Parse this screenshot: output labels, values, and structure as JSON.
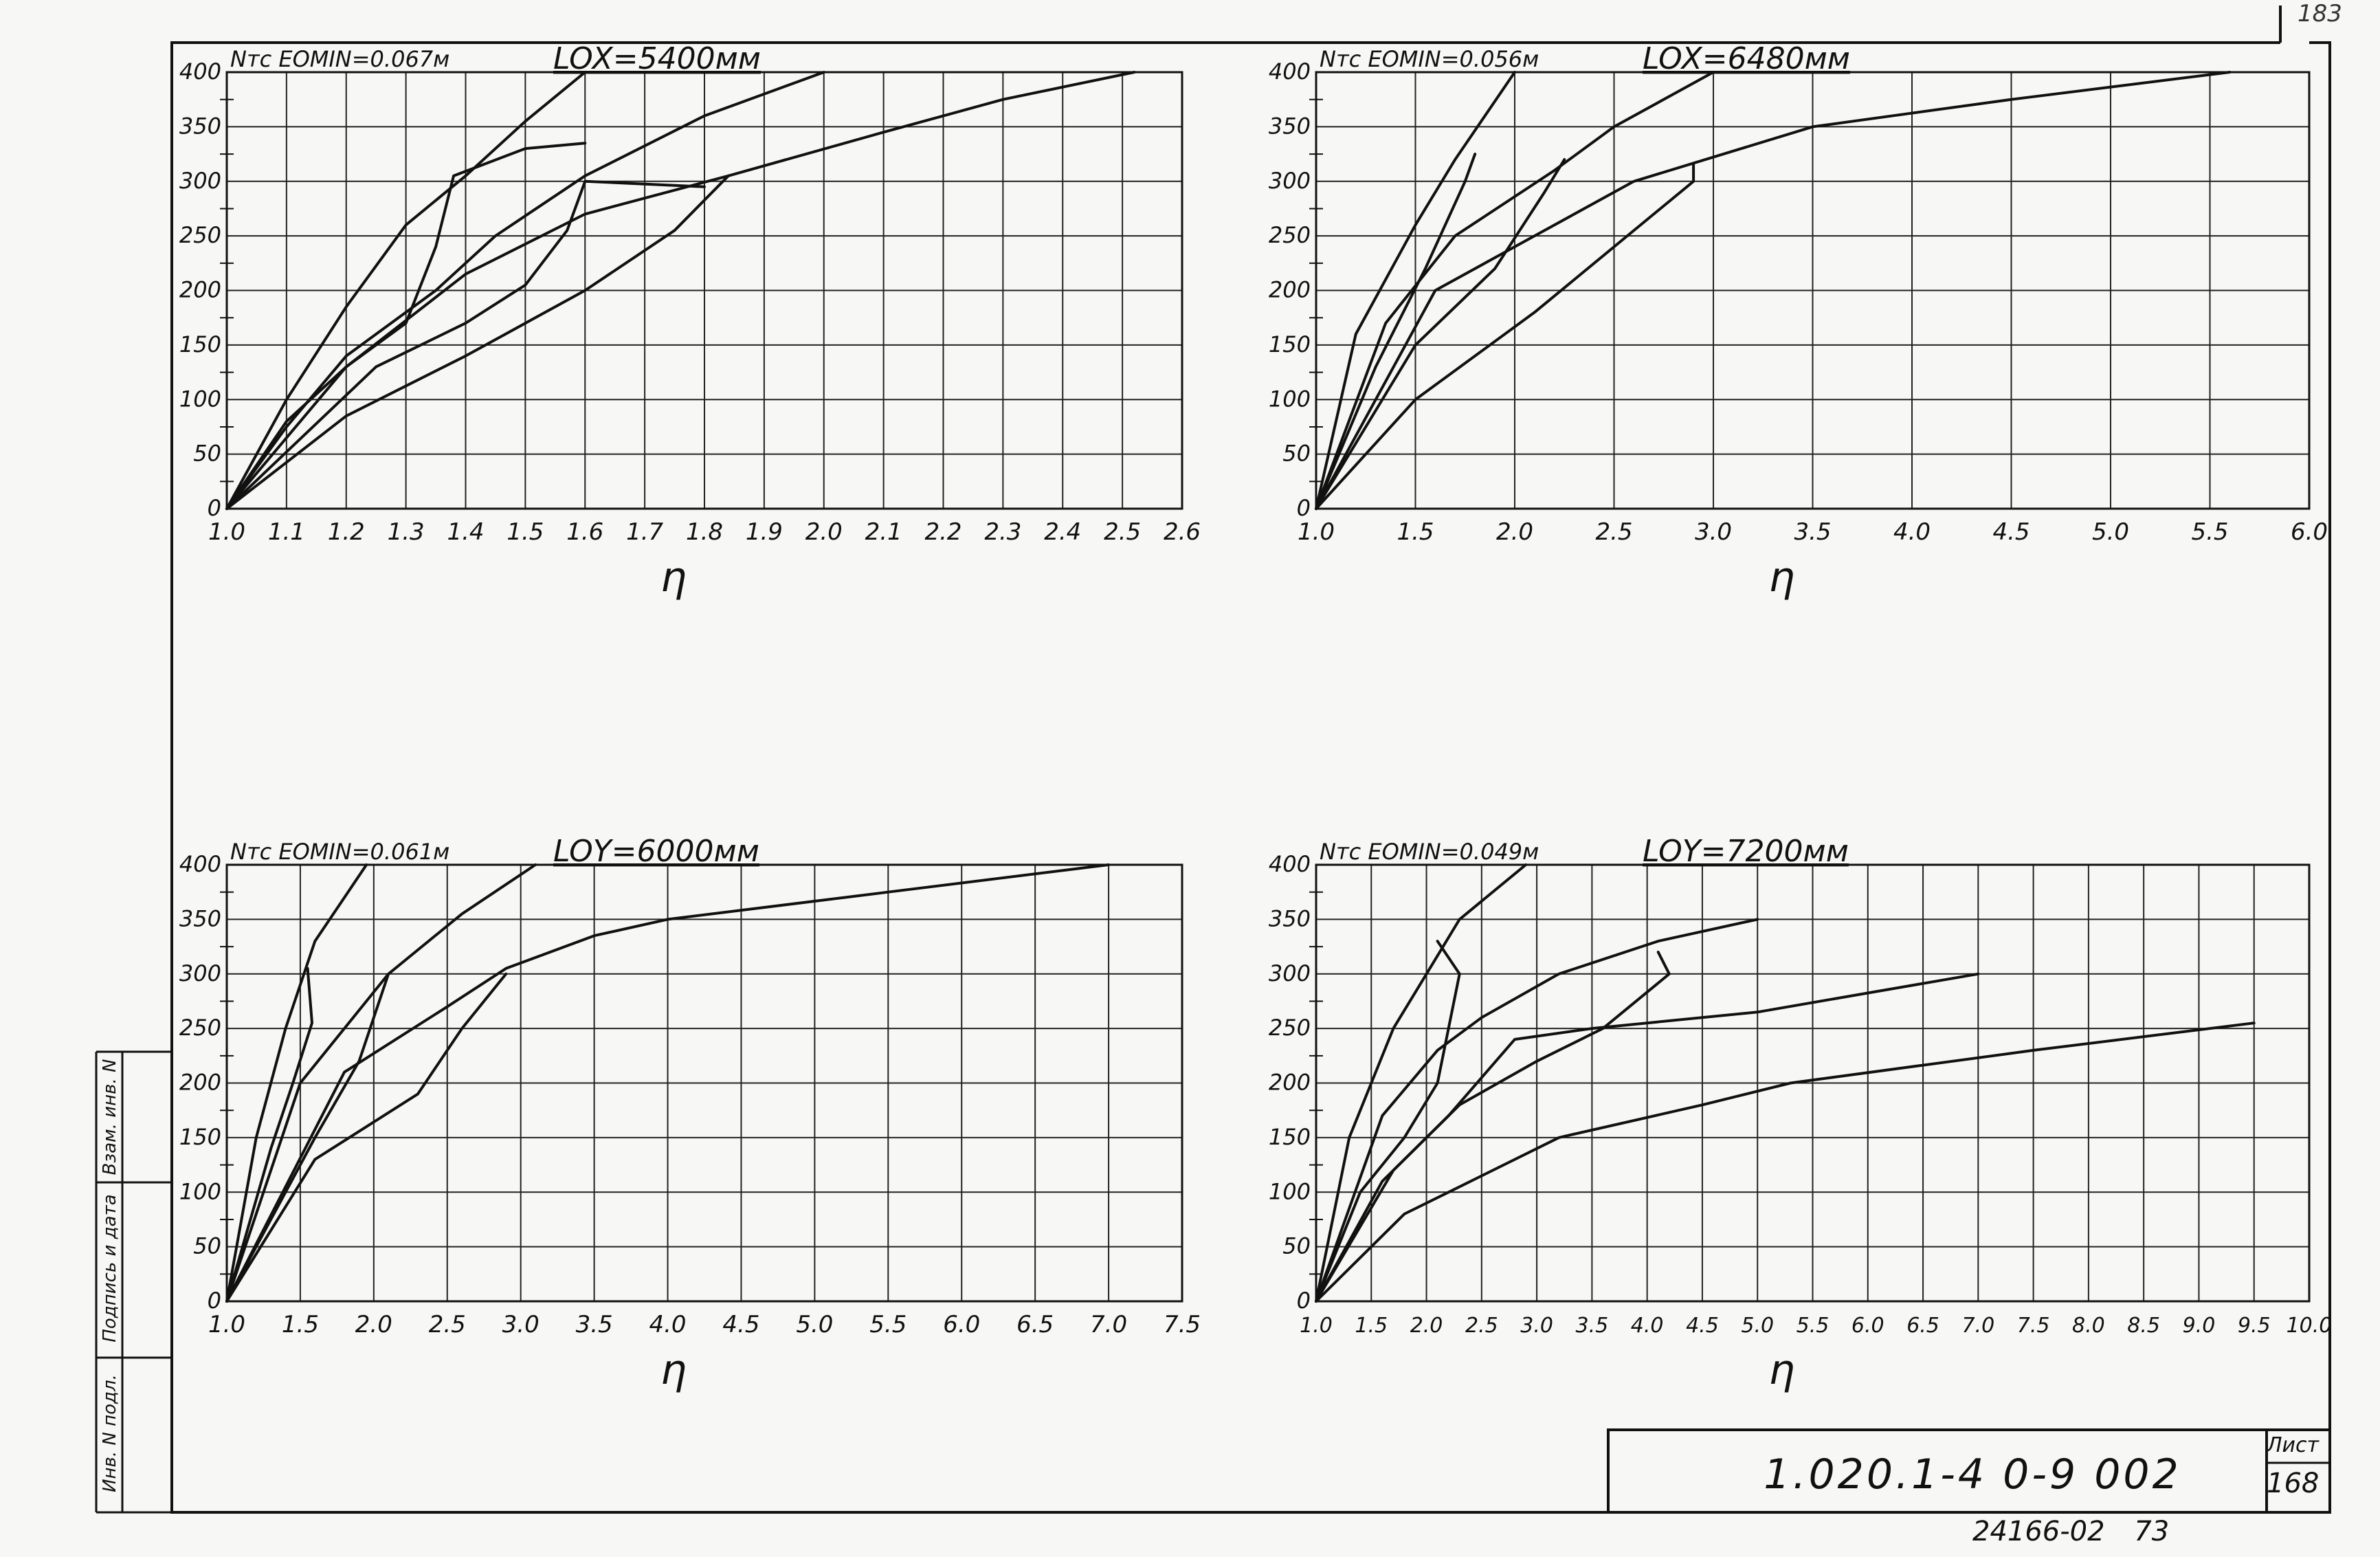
{
  "page": {
    "page_number": "183",
    "document_code": "1.020.1-4  0-9  002",
    "sheet_label": "Лист",
    "sheet_number": "168",
    "archive_number": "24166-02",
    "archive_page": "73",
    "stamp_columns": [
      "Инв. N подл.",
      "Подпись и дата",
      "Взам. инв. N"
    ]
  },
  "chart_data": [
    {
      "type": "line",
      "header_left": "Nтс  EOMIN=0.067м",
      "header_right": "LOX=5400мм",
      "xlabel": "η",
      "xlim": [
        1.0,
        2.6
      ],
      "ylim": [
        0,
        400
      ],
      "xticks": [
        1.0,
        1.1,
        1.2,
        1.3,
        1.4,
        1.5,
        1.6,
        1.7,
        1.8,
        1.9,
        2.0,
        2.1,
        2.2,
        2.3,
        2.4,
        2.5,
        2.6
      ],
      "xtick_labels": [
        "1.0",
        "1.1",
        "1.2",
        "1.3",
        "1.4",
        "1.5",
        "1.6",
        "1.7",
        "1.8",
        "1.9",
        "2.0",
        "2.1",
        "2.2",
        "2.3",
        "2.4",
        "2.5",
        "2.6"
      ],
      "yticks": [
        0,
        50,
        100,
        150,
        200,
        250,
        300,
        350,
        400
      ],
      "ytick_labels": [
        "0",
        "50",
        "100",
        "150",
        "200",
        "250",
        "300",
        "350",
        "400"
      ],
      "grid": true,
      "series": [
        {
          "points": [
            [
              1.0,
              0
            ],
            [
              1.1,
              100
            ],
            [
              1.2,
              185
            ],
            [
              1.3,
              260
            ],
            [
              1.4,
              305
            ],
            [
              1.5,
              355
            ],
            [
              1.6,
              400
            ]
          ]
        },
        {
          "points": [
            [
              1.0,
              0
            ],
            [
              1.1,
              80
            ],
            [
              1.2,
              130
            ],
            [
              1.3,
              170
            ],
            [
              1.35,
              240
            ],
            [
              1.38,
              305
            ],
            [
              1.5,
              330
            ],
            [
              1.6,
              335
            ]
          ]
        },
        {
          "points": [
            [
              1.0,
              0
            ],
            [
              1.1,
              75
            ],
            [
              1.2,
              140
            ],
            [
              1.35,
              200
            ],
            [
              1.45,
              250
            ],
            [
              1.6,
              305
            ],
            [
              1.8,
              360
            ],
            [
              2.0,
              400
            ]
          ]
        },
        {
          "points": [
            [
              1.0,
              0
            ],
            [
              1.25,
              130
            ],
            [
              1.4,
              170
            ],
            [
              1.5,
              205
            ],
            [
              1.57,
              255
            ],
            [
              1.6,
              300
            ],
            [
              1.8,
              295
            ]
          ]
        },
        {
          "points": [
            [
              1.0,
              0
            ],
            [
              1.2,
              130
            ],
            [
              1.4,
              215
            ],
            [
              1.6,
              270
            ],
            [
              1.84,
              305
            ],
            [
              2.1,
              345
            ],
            [
              2.3,
              375
            ],
            [
              2.52,
              400
            ]
          ]
        },
        {
          "points": [
            [
              1.0,
              0
            ],
            [
              1.2,
              85
            ],
            [
              1.4,
              140
            ],
            [
              1.6,
              200
            ],
            [
              1.75,
              255
            ],
            [
              1.84,
              305
            ]
          ]
        }
      ]
    },
    {
      "type": "line",
      "header_left": "Nтс  EOMIN=0.056м",
      "header_right": "LOX=6480мм",
      "xlabel": "η",
      "xlim": [
        1.0,
        6.0
      ],
      "ylim": [
        0,
        400
      ],
      "xticks": [
        1.0,
        1.5,
        2.0,
        2.5,
        3.0,
        3.5,
        4.0,
        4.5,
        5.0,
        5.5,
        6.0
      ],
      "xtick_labels": [
        "1.0",
        "1.5",
        "2.0",
        "2.5",
        "3.0",
        "3.5",
        "4.0",
        "4.5",
        "5.0",
        "5.5",
        "6.0"
      ],
      "yticks": [
        0,
        50,
        100,
        150,
        200,
        250,
        300,
        350,
        400
      ],
      "ytick_labels": [
        "0",
        "50",
        "100",
        "150",
        "200",
        "250",
        "300",
        "350",
        "400"
      ],
      "grid": true,
      "series": [
        {
          "points": [
            [
              1.0,
              0
            ],
            [
              1.2,
              160
            ],
            [
              1.5,
              260
            ],
            [
              1.7,
              320
            ],
            [
              2.0,
              400
            ]
          ]
        },
        {
          "points": [
            [
              1.0,
              0
            ],
            [
              1.3,
              130
            ],
            [
              1.55,
              220
            ],
            [
              1.75,
              300
            ],
            [
              1.8,
              325
            ]
          ]
        },
        {
          "points": [
            [
              1.0,
              0
            ],
            [
              1.35,
              170
            ],
            [
              1.7,
              250
            ],
            [
              2.2,
              310
            ],
            [
              2.5,
              350
            ],
            [
              3.0,
              400
            ]
          ]
        },
        {
          "points": [
            [
              1.0,
              0
            ],
            [
              1.5,
              150
            ],
            [
              1.9,
              220
            ],
            [
              2.15,
              290
            ],
            [
              2.25,
              320
            ]
          ]
        },
        {
          "points": [
            [
              1.0,
              0
            ],
            [
              1.6,
              200
            ],
            [
              2.1,
              250
            ],
            [
              2.6,
              300
            ],
            [
              3.5,
              350
            ],
            [
              4.5,
              375
            ],
            [
              5.6,
              400
            ]
          ]
        },
        {
          "points": [
            [
              1.0,
              0
            ],
            [
              1.5,
              100
            ],
            [
              2.1,
              180
            ],
            [
              2.9,
              300
            ],
            [
              2.9,
              315
            ]
          ]
        }
      ]
    },
    {
      "type": "line",
      "header_left": "Nтс  EOMIN=0.061м",
      "header_right": "LOY=6000мм",
      "xlabel": "η",
      "xlim": [
        1.0,
        7.5
      ],
      "ylim": [
        0,
        400
      ],
      "xticks": [
        1.0,
        1.5,
        2.0,
        2.5,
        3.0,
        3.5,
        4.0,
        4.5,
        5.0,
        5.5,
        6.0,
        6.5,
        7.0,
        7.5
      ],
      "xtick_labels": [
        "1.0",
        "1.5",
        "2.0",
        "2.5",
        "3.0",
        "3.5",
        "4.0",
        "4.5",
        "5.0",
        "5.5",
        "6.0",
        "6.5",
        "7.0",
        "7.5"
      ],
      "yticks": [
        0,
        50,
        100,
        150,
        200,
        250,
        300,
        350,
        400
      ],
      "ytick_labels": [
        "0",
        "50",
        "100",
        "150",
        "200",
        "250",
        "300",
        "350",
        "400"
      ],
      "grid": true,
      "series": [
        {
          "points": [
            [
              1.0,
              0
            ],
            [
              1.2,
              150
            ],
            [
              1.4,
              250
            ],
            [
              1.6,
              330
            ],
            [
              1.95,
              400
            ]
          ]
        },
        {
          "points": [
            [
              1.0,
              0
            ],
            [
              1.3,
              140
            ],
            [
              1.45,
              200
            ],
            [
              1.58,
              255
            ],
            [
              1.55,
              305
            ]
          ]
        },
        {
          "points": [
            [
              1.0,
              0
            ],
            [
              1.5,
              200
            ],
            [
              2.1,
              300
            ],
            [
              2.6,
              355
            ],
            [
              3.1,
              400
            ]
          ]
        },
        {
          "points": [
            [
              1.0,
              0
            ],
            [
              1.6,
              150
            ],
            [
              1.9,
              220
            ],
            [
              2.1,
              300
            ]
          ]
        },
        {
          "points": [
            [
              1.0,
              0
            ],
            [
              1.8,
              210
            ],
            [
              2.5,
              270
            ],
            [
              2.9,
              305
            ],
            [
              3.5,
              335
            ],
            [
              4.0,
              350
            ],
            [
              5.5,
              375
            ],
            [
              7.0,
              400
            ]
          ]
        },
        {
          "points": [
            [
              1.0,
              0
            ],
            [
              1.6,
              130
            ],
            [
              2.3,
              190
            ],
            [
              2.6,
              250
            ],
            [
              2.9,
              300
            ]
          ]
        }
      ]
    },
    {
      "type": "line",
      "header_left": "Nтс  EOMIN=0.049м",
      "header_right": "LOY=7200мм",
      "xlabel": "η",
      "xlim": [
        1.0,
        10.0
      ],
      "ylim": [
        0,
        400
      ],
      "xticks": [
        1.0,
        1.5,
        2.0,
        2.5,
        3.0,
        3.5,
        4.0,
        4.5,
        5.0,
        5.5,
        6.0,
        6.5,
        7.0,
        7.5,
        8.0,
        8.5,
        9.0,
        9.5,
        10.0
      ],
      "xtick_labels": [
        "1.0",
        "1.5",
        "2.0",
        "2.5",
        "3.0",
        "3.5",
        "4.0",
        "4.5",
        "5.0",
        "5.5",
        "6.0",
        "6.5",
        "7.0",
        "7.5",
        "8.0",
        "8.5",
        "9.0",
        "9.5",
        "10.0"
      ],
      "yticks": [
        0,
        50,
        100,
        150,
        200,
        250,
        300,
        350,
        400
      ],
      "ytick_labels": [
        "0",
        "50",
        "100",
        "150",
        "200",
        "250",
        "300",
        "350",
        "400"
      ],
      "grid": true,
      "series": [
        {
          "points": [
            [
              1.0,
              0
            ],
            [
              1.3,
              150
            ],
            [
              1.7,
              250
            ],
            [
              2.0,
              300
            ],
            [
              2.3,
              350
            ],
            [
              2.9,
              400
            ]
          ]
        },
        {
          "points": [
            [
              1.0,
              0
            ],
            [
              1.4,
              100
            ],
            [
              1.8,
              150
            ],
            [
              2.1,
              200
            ],
            [
              2.3,
              300
            ],
            [
              2.1,
              330
            ]
          ]
        },
        {
          "points": [
            [
              1.0,
              0
            ],
            [
              1.6,
              170
            ],
            [
              2.1,
              230
            ],
            [
              2.5,
              260
            ],
            [
              3.2,
              300
            ],
            [
              4.1,
              330
            ],
            [
              5.0,
              350
            ]
          ]
        },
        {
          "points": [
            [
              1.0,
              0
            ],
            [
              1.7,
              120
            ],
            [
              2.3,
              180
            ],
            [
              3.0,
              220
            ],
            [
              3.6,
              250
            ],
            [
              4.2,
              300
            ],
            [
              4.1,
              320
            ]
          ]
        },
        {
          "points": [
            [
              1.0,
              0
            ],
            [
              1.6,
              110
            ],
            [
              2.2,
              170
            ],
            [
              2.8,
              240
            ],
            [
              3.5,
              250
            ],
            [
              5.0,
              265
            ],
            [
              7.0,
              300
            ]
          ]
        },
        {
          "points": [
            [
              1.0,
              0
            ],
            [
              1.8,
              80
            ],
            [
              2.2,
              100
            ],
            [
              3.2,
              150
            ],
            [
              4.5,
              180
            ],
            [
              5.3,
              200
            ],
            [
              7.5,
              230
            ],
            [
              9.5,
              255
            ]
          ]
        }
      ]
    }
  ]
}
